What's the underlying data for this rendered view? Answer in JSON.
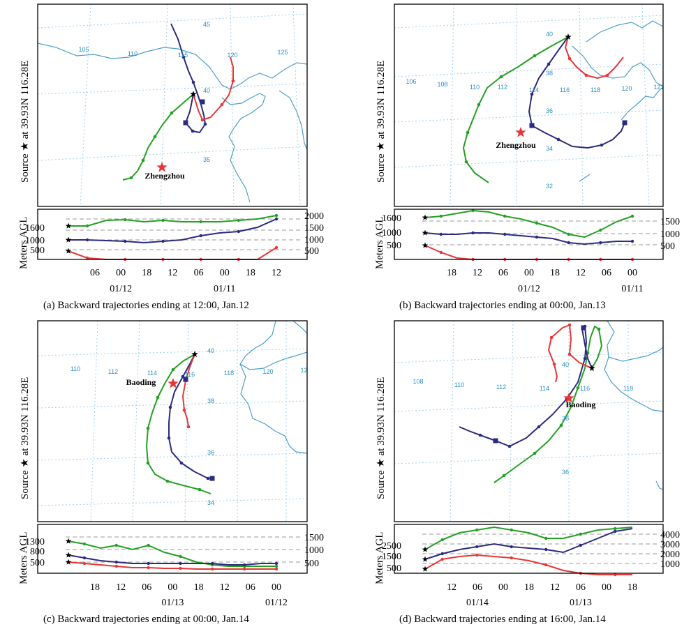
{
  "colors": {
    "green": "#22a022",
    "navy": "#2a2a80",
    "red": "#e83535",
    "grid": "#9fd0ee",
    "coast": "#4a9fd0",
    "star": "#e83535"
  },
  "common": {
    "source_label": "Source ★ at 39.93N 116.28E",
    "meters_label": "Meters AGL"
  },
  "panels": [
    {
      "id": "a",
      "caption": "(a) Backward trajectories ending at 12:00, Jan.12",
      "city": "Zhengzhou",
      "lon_labels": [
        "105",
        "110",
        "115",
        "120",
        "125"
      ],
      "lat_labels": [
        "45",
        "40",
        "35"
      ],
      "left_ticks": [
        "1600",
        "1000",
        "500"
      ],
      "right_ticks": [
        "2000",
        "1500",
        "1000",
        "500"
      ],
      "time_ticks": [
        "06",
        "00",
        "18",
        "12",
        "06",
        "00",
        "18",
        "12"
      ],
      "date_labels": [
        "01/12",
        "01/11"
      ]
    },
    {
      "id": "b",
      "caption": "(b) Backward trajectories ending at 00:00, Jan.13",
      "city": "Zhengzhou",
      "lon_labels": [
        "106",
        "108",
        "110",
        "112",
        "114",
        "116",
        "118",
        "120",
        "122"
      ],
      "lat_labels": [
        "40",
        "38",
        "36",
        "34",
        "32"
      ],
      "left_ticks": [
        "1600",
        "1000",
        "500"
      ],
      "right_ticks": [
        "1500",
        "1000",
        "500"
      ],
      "time_ticks": [
        "18",
        "12",
        "06",
        "00",
        "18",
        "12",
        "06",
        "00"
      ],
      "date_labels": [
        "01/12",
        "01/11"
      ]
    },
    {
      "id": "c",
      "caption": "(c) Backward trajectories ending at 00:00, Jan.14",
      "city": "Baoding",
      "lon_labels": [
        "110",
        "112",
        "114",
        "116",
        "118",
        "120",
        "122"
      ],
      "lat_labels": [
        "40",
        "38",
        "36",
        "34"
      ],
      "left_ticks": [
        "1300",
        "800",
        "500"
      ],
      "right_ticks": [
        "1500",
        "1000",
        "500"
      ],
      "time_ticks": [
        "18",
        "12",
        "06",
        "00",
        "18",
        "12",
        "06",
        "00"
      ],
      "date_labels": [
        "01/13",
        "01/12"
      ]
    },
    {
      "id": "d",
      "caption": "(d) Backward trajectories ending at 16:00, Jan.14",
      "city": "Baoding",
      "lon_labels": [
        "108",
        "110",
        "112",
        "114",
        "116",
        "118"
      ],
      "lat_labels": [
        "40",
        "38",
        "36"
      ],
      "left_ticks": [
        "2500",
        "1500",
        "500"
      ],
      "right_ticks": [
        "4000",
        "3000",
        "2000",
        "1000"
      ],
      "time_ticks": [
        "12",
        "06",
        "00",
        "18",
        "12",
        "06",
        "00",
        "18"
      ],
      "date_labels": [
        "01/14",
        "01/13"
      ]
    }
  ]
}
